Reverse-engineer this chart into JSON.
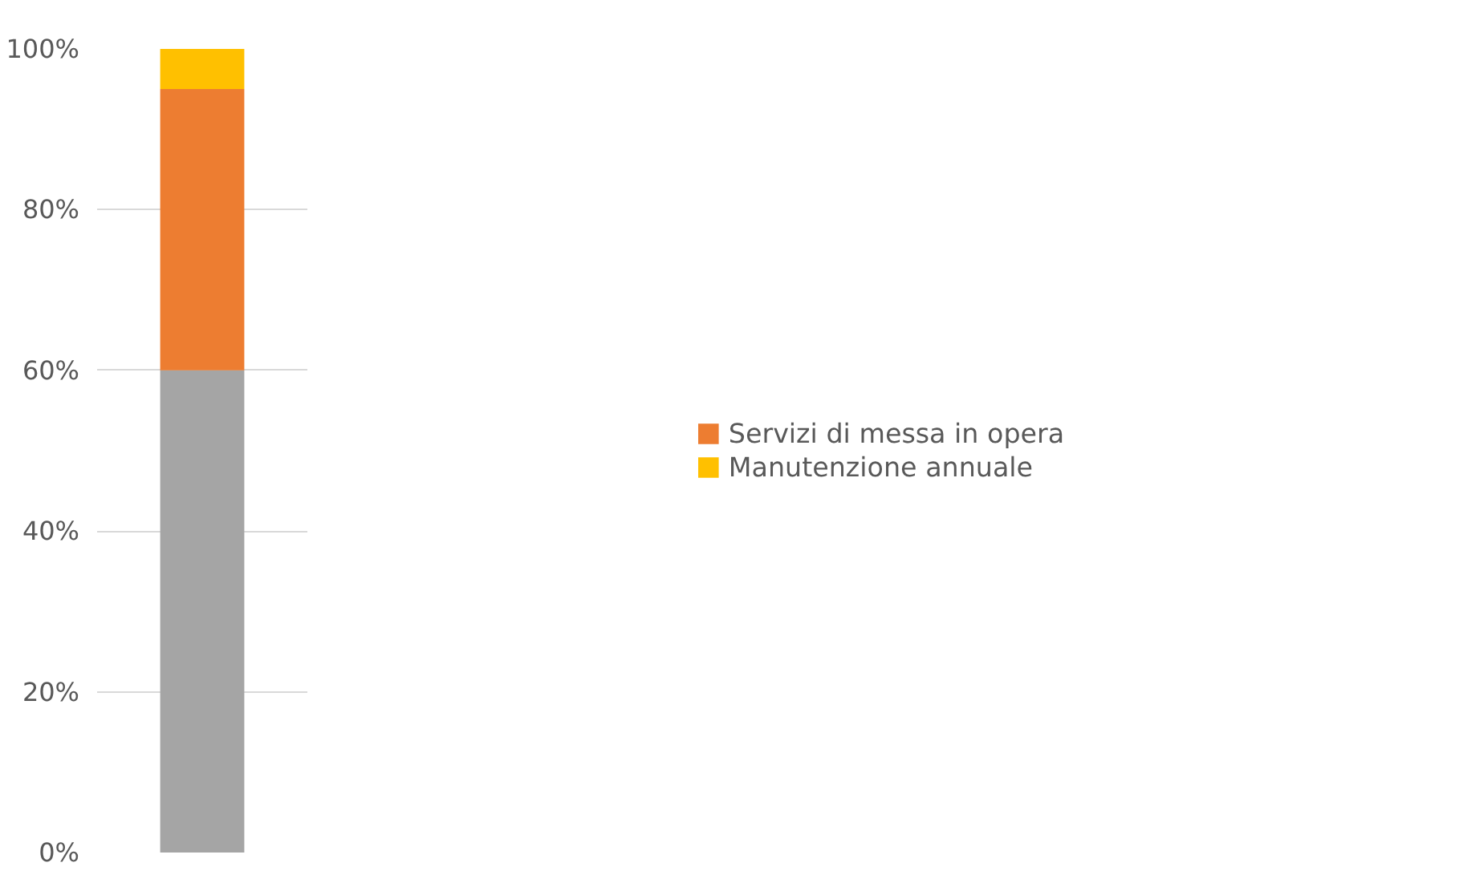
{
  "chart_data": {
    "type": "bar",
    "stacked": true,
    "categories": [
      null
    ],
    "series": [
      {
        "color": "#a5a5a5",
        "values": [
          60
        ]
      },
      {
        "name": "Servizi di messa in opera",
        "color": "#ed7d31",
        "values": [
          35
        ]
      },
      {
        "name": "Manutenzione annuale",
        "color": "#ffc000",
        "values": [
          5
        ]
      }
    ],
    "ylim": [
      0,
      100
    ],
    "yticks": [
      {
        "value": 0,
        "label": "0%"
      },
      {
        "value": 20,
        "label": "20%"
      },
      {
        "value": 40,
        "label": "40%"
      },
      {
        "value": 60,
        "label": "60%"
      },
      {
        "value": 80,
        "label": "80%"
      },
      {
        "value": 100,
        "label": "100%"
      }
    ],
    "grid": "y",
    "legend": "right"
  }
}
